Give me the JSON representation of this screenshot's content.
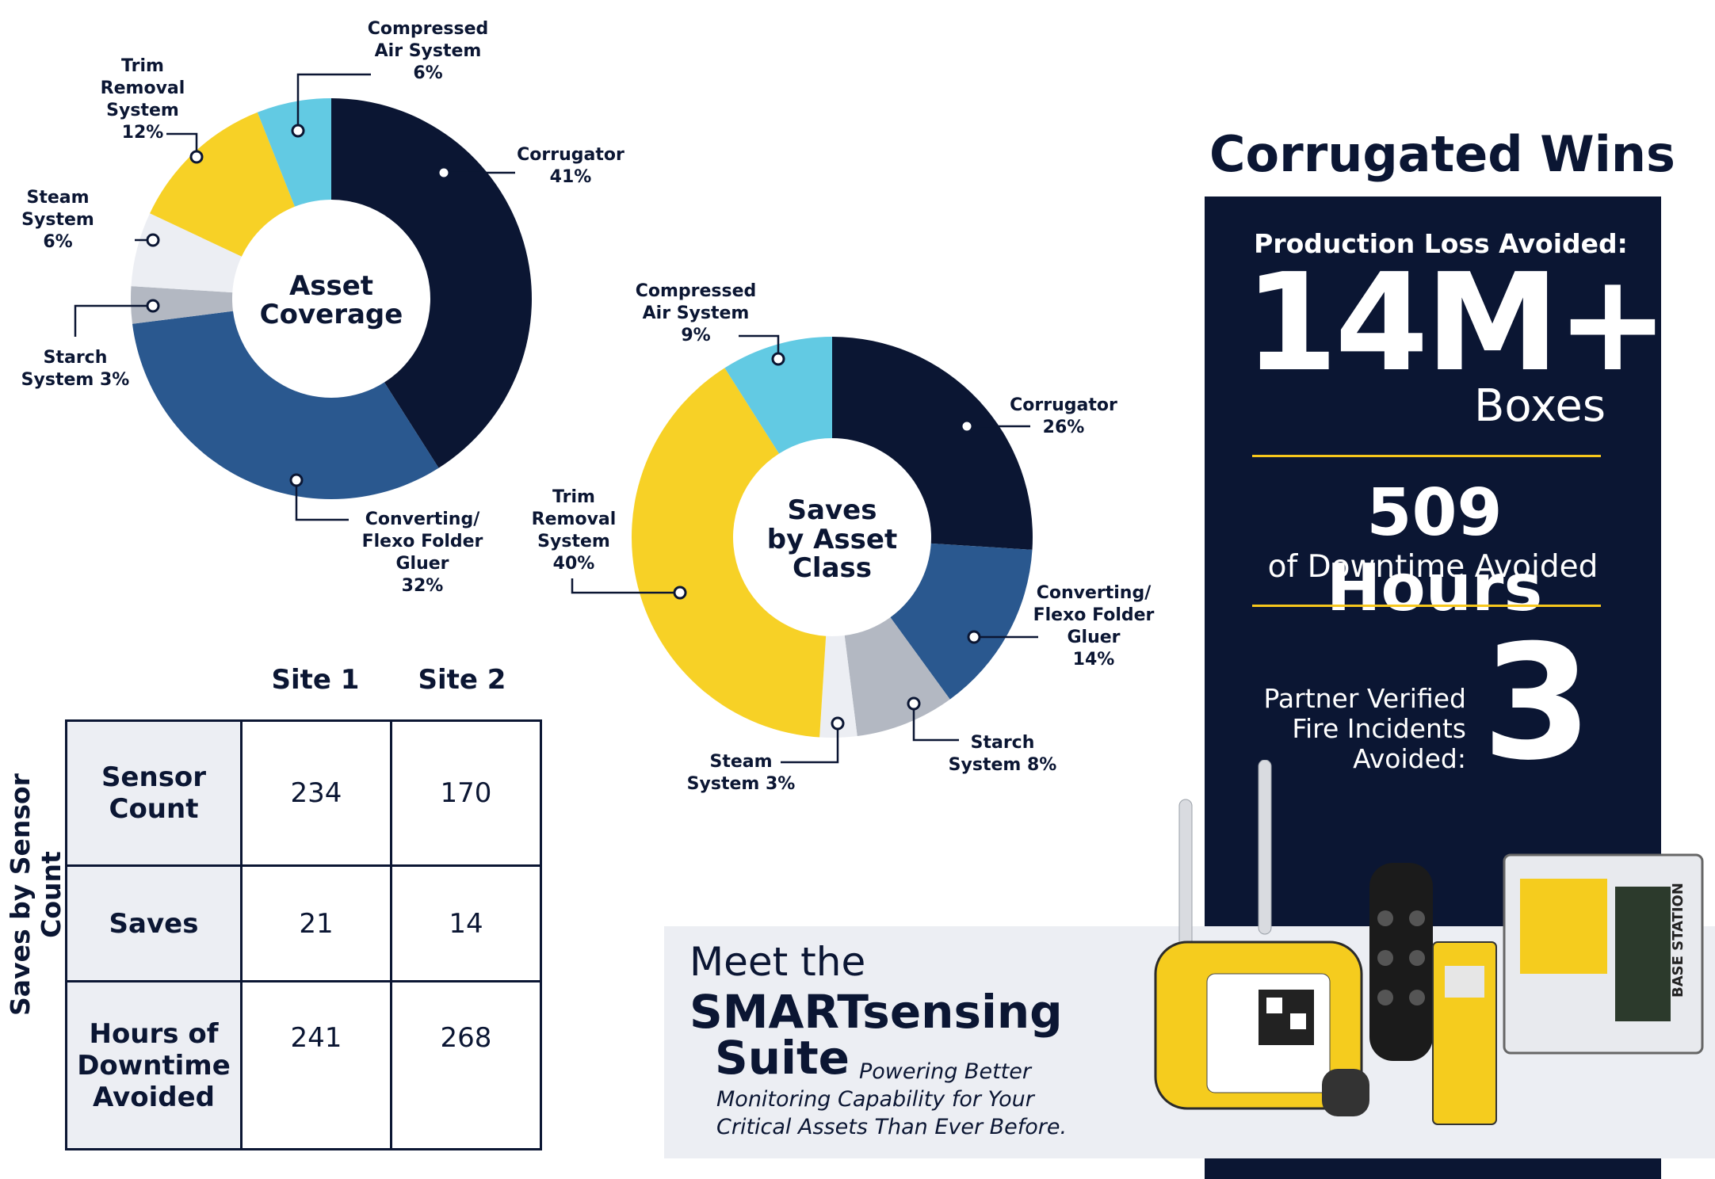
{
  "chart_data": [
    {
      "type": "pie",
      "title": "Asset Coverage",
      "title_lines": [
        "Asset",
        "Coverage"
      ],
      "slices": [
        {
          "name": "Corrugator",
          "value": 41,
          "label_lines": [
            "Corrugator",
            "41%"
          ],
          "color": "#0b1633"
        },
        {
          "name": "Converting/ Flexo Folder Gluer",
          "value": 32,
          "label_lines": [
            "Converting/",
            "Flexo Folder",
            "Gluer",
            "32%"
          ],
          "color": "#2a588f"
        },
        {
          "name": "Starch System",
          "value": 3,
          "label_lines": [
            "Starch",
            "System 3%"
          ],
          "color": "#b3b8c2"
        },
        {
          "name": "Steam System",
          "value": 6,
          "label_lines": [
            "Steam",
            "System",
            "6%"
          ],
          "color": "#eceef3"
        },
        {
          "name": "Trim Removal System",
          "value": 12,
          "label_lines": [
            "Trim",
            "Removal",
            "System",
            "12%"
          ],
          "color": "#f7d126"
        },
        {
          "name": "Compressed Air System",
          "value": 6,
          "label_lines": [
            "Compressed",
            "Air System",
            "6%"
          ],
          "color": "#62cae3"
        }
      ]
    },
    {
      "type": "pie",
      "title": "Saves by Asset Class",
      "title_lines": [
        "Saves",
        "by Asset",
        "Class"
      ],
      "slices": [
        {
          "name": "Corrugator",
          "value": 26,
          "label_lines": [
            "Corrugator",
            "26%"
          ],
          "color": "#0b1633"
        },
        {
          "name": "Converting/ Flexo Folder Gluer",
          "value": 14,
          "label_lines": [
            "Converting/",
            "Flexo Folder",
            "Gluer",
            "14%"
          ],
          "color": "#2a588f"
        },
        {
          "name": "Starch System",
          "value": 8,
          "label_lines": [
            "Starch",
            "System 8%"
          ],
          "color": "#b3b8c2"
        },
        {
          "name": "Steam System",
          "value": 3,
          "label_lines": [
            "Steam",
            "System 3%"
          ],
          "color": "#eceef3"
        },
        {
          "name": "Trim Removal System",
          "value": 40,
          "label_lines": [
            "Trim",
            "Removal",
            "System",
            "40%"
          ],
          "color": "#f7d126"
        },
        {
          "name": "Compressed Air System",
          "value": 9,
          "label_lines": [
            "Compressed",
            "Air System",
            "9%"
          ],
          "color": "#62cae3"
        }
      ]
    },
    {
      "type": "table",
      "title": "Saves by Sensor Count",
      "columns": [
        "Site 1",
        "Site 2"
      ],
      "rows": [
        {
          "label": "Sensor Count",
          "values": [
            "234",
            "170"
          ]
        },
        {
          "label": "Saves",
          "values": [
            "21",
            "14"
          ]
        },
        {
          "label": "Hours of Downtime Avoided",
          "values": [
            "241",
            "268"
          ]
        }
      ]
    }
  ],
  "wins": {
    "title": "Corrugated Wins",
    "production_label": "Production Loss Avoided:",
    "production_value": "14M+",
    "production_unit": "Boxes",
    "downtime_value": "509 Hours",
    "downtime_label": "of Downtime Avoided",
    "fire_label_lines": [
      "Partner Verified",
      "Fire Incidents",
      "Avoided:"
    ],
    "fire_value": "3",
    "panel_color": "#0b1633",
    "accent_color": "#f7c71c"
  },
  "table": {
    "side_title": "Saves by Sensor Count",
    "col1": "Site 1",
    "col2": "Site 2",
    "row1_label_lines": [
      "Sensor",
      "Count"
    ],
    "row1_v1": "234",
    "row1_v2": "170",
    "row2_label": "Saves",
    "row2_v1": "21",
    "row2_v2": "14",
    "row3_label_lines": [
      "Hours of",
      "Downtime",
      "Avoided"
    ],
    "row3_v1": "241",
    "row3_v2": "268"
  },
  "banner": {
    "meet": "Meet the",
    "suite_name": "SMARTsensing",
    "suite_word": "Suite",
    "tagline_lines": [
      "Powering Better",
      "Monitoring Capability for Your",
      "Critical Assets Than Ever Before."
    ]
  }
}
